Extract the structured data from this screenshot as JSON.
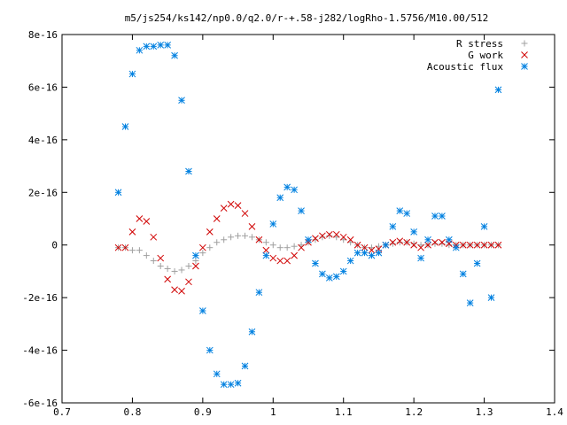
{
  "chart_data": {
    "type": "scatter",
    "title": "m5/js254/ks142/np0.0/q2.0/r-+.58-j282/logRho-1.5756/M10.00/512",
    "xlabel": "",
    "ylabel": "",
    "xlim": [
      0.7,
      1.4
    ],
    "ylim": [
      -6e-16,
      8e-16
    ],
    "x_ticks": [
      0.7,
      0.8,
      0.9,
      1,
      1.1,
      1.2,
      1.3,
      1.4
    ],
    "x_tick_labels": [
      "0.7",
      "0.8",
      "0.9",
      "1",
      "1.1",
      "1.2",
      "1.3",
      "1.4"
    ],
    "y_ticks": [
      -6e-16,
      -4e-16,
      -2e-16,
      0,
      2e-16,
      4e-16,
      6e-16,
      8e-16
    ],
    "y_tick_labels": [
      "-6e-16",
      "-4e-16",
      "-2e-16",
      "0",
      "2e-16",
      "4e-16",
      "6e-16",
      "8e-16"
    ],
    "grid": false,
    "legend_position": "top-right",
    "series": [
      {
        "name": "R stress",
        "marker": "plus",
        "color": "#a0a0a0",
        "x": [
          0.78,
          0.79,
          0.8,
          0.81,
          0.82,
          0.83,
          0.84,
          0.85,
          0.86,
          0.87,
          0.88,
          0.89,
          0.9,
          0.91,
          0.92,
          0.93,
          0.94,
          0.95,
          0.96,
          0.97,
          0.98,
          0.99,
          1.0,
          1.01,
          1.02,
          1.03,
          1.04,
          1.05,
          1.06,
          1.07,
          1.08,
          1.09,
          1.1,
          1.11,
          1.12,
          1.13,
          1.14,
          1.15,
          1.16,
          1.17,
          1.18,
          1.19,
          1.2,
          1.21,
          1.22,
          1.23,
          1.24,
          1.25,
          1.26,
          1.27,
          1.28,
          1.29,
          1.3,
          1.31,
          1.32
        ],
        "y": [
          -1e-17,
          -1e-17,
          -2e-17,
          -2e-17,
          -4e-17,
          -6e-17,
          -8e-17,
          -9e-17,
          -1e-16,
          -9.5e-17,
          -8e-17,
          -6e-17,
          -3e-17,
          -1e-17,
          1e-17,
          2e-17,
          3e-17,
          3.5e-17,
          3.5e-17,
          3e-17,
          2e-17,
          1e-17,
          0,
          -1e-17,
          -1e-17,
          -5e-18,
          0,
          1e-17,
          2e-17,
          3e-17,
          3.5e-17,
          3e-17,
          2e-17,
          1e-17,
          0,
          -1e-17,
          -1e-17,
          -5e-18,
          0,
          5e-18,
          1e-17,
          1e-17,
          5e-18,
          0,
          0,
          5e-18,
          5e-18,
          0,
          0,
          0,
          0,
          0,
          0,
          0,
          0
        ]
      },
      {
        "name": "G work",
        "marker": "cross",
        "color": "#d00000",
        "x": [
          0.78,
          0.79,
          0.8,
          0.81,
          0.82,
          0.83,
          0.84,
          0.85,
          0.86,
          0.87,
          0.88,
          0.89,
          0.9,
          0.91,
          0.92,
          0.93,
          0.94,
          0.95,
          0.96,
          0.97,
          0.98,
          0.99,
          1.0,
          1.01,
          1.02,
          1.03,
          1.04,
          1.05,
          1.06,
          1.07,
          1.08,
          1.09,
          1.1,
          1.11,
          1.12,
          1.13,
          1.14,
          1.15,
          1.16,
          1.17,
          1.18,
          1.19,
          1.2,
          1.21,
          1.22,
          1.23,
          1.24,
          1.25,
          1.26,
          1.27,
          1.28,
          1.29,
          1.3,
          1.31,
          1.32
        ],
        "y": [
          -1e-17,
          -1e-17,
          5e-17,
          1e-16,
          9e-17,
          3e-17,
          -5e-17,
          -1.3e-16,
          -1.7e-16,
          -1.75e-16,
          -1.4e-16,
          -8e-17,
          -1e-17,
          5e-17,
          1e-16,
          1.4e-16,
          1.55e-16,
          1.5e-16,
          1.2e-16,
          7e-17,
          2e-17,
          -2e-17,
          -5e-17,
          -6e-17,
          -6e-17,
          -4e-17,
          -1e-17,
          1e-17,
          2.5e-17,
          3.5e-17,
          4e-17,
          4e-17,
          3e-17,
          2e-17,
          0,
          -1e-17,
          -2e-17,
          -1.5e-17,
          0,
          1e-17,
          1.5e-17,
          1e-17,
          0,
          -1e-17,
          0,
          1e-17,
          1e-17,
          5e-18,
          0,
          0,
          0,
          0,
          0,
          0,
          0
        ]
      },
      {
        "name": "Acoustic flux",
        "marker": "star",
        "color": "#0080e0",
        "x": [
          0.78,
          0.79,
          0.8,
          0.81,
          0.82,
          0.83,
          0.84,
          0.85,
          0.86,
          0.87,
          0.88,
          0.89,
          0.9,
          0.91,
          0.92,
          0.93,
          0.94,
          0.95,
          0.96,
          0.97,
          0.98,
          0.99,
          1.0,
          1.01,
          1.02,
          1.03,
          1.04,
          1.05,
          1.06,
          1.07,
          1.08,
          1.09,
          1.1,
          1.11,
          1.12,
          1.13,
          1.14,
          1.15,
          1.16,
          1.17,
          1.18,
          1.19,
          1.2,
          1.21,
          1.22,
          1.23,
          1.24,
          1.25,
          1.26,
          1.27,
          1.28,
          1.29,
          1.3,
          1.31,
          1.32
        ],
        "y": [
          2e-16,
          4.5e-16,
          6.5e-16,
          7.4e-16,
          7.55e-16,
          7.55e-16,
          7.6e-16,
          7.6e-16,
          7.2e-16,
          5.5e-16,
          2.8e-16,
          -4e-17,
          -2.5e-16,
          -4e-16,
          -4.9e-16,
          -5.3e-16,
          -5.3e-16,
          -5.25e-16,
          -4.6e-16,
          -3.3e-16,
          -1.8e-16,
          -4e-17,
          8e-17,
          1.8e-16,
          2.2e-16,
          2.1e-16,
          1.3e-16,
          2e-17,
          -7e-17,
          -1.1e-16,
          -1.25e-16,
          -1.2e-16,
          -1e-16,
          -6e-17,
          -3e-17,
          -3e-17,
          -4e-17,
          -3e-17,
          0,
          7e-17,
          1.3e-16,
          1.2e-16,
          5e-17,
          -5e-17,
          2e-17,
          1.1e-16,
          1.1e-16,
          2e-17,
          -1e-17,
          -1.1e-16,
          -2.2e-16,
          -7e-17,
          7e-17,
          -2e-16,
          5.9e-16
        ]
      }
    ]
  }
}
